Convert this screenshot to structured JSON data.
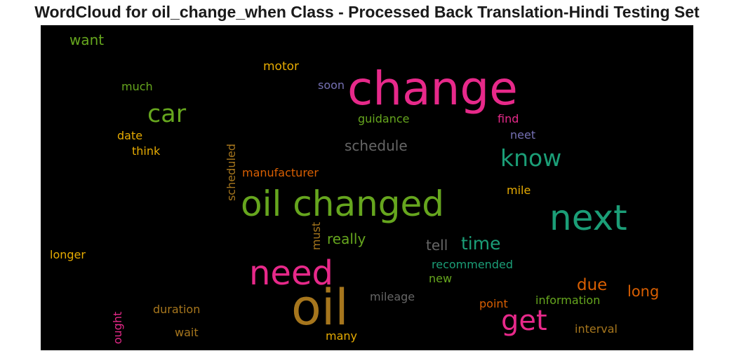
{
  "title": "WordCloud for oil_change_when Class - Processed Back Translation-Hindi Testing Set",
  "words": [
    {
      "text": "change",
      "color": "#e7298a"
    },
    {
      "text": "oil changed",
      "color": "#66a61e"
    },
    {
      "text": "next",
      "color": "#1b9e77"
    },
    {
      "text": "oil",
      "color": "#a6761d"
    },
    {
      "text": "need",
      "color": "#e7298a"
    },
    {
      "text": "get",
      "color": "#e7298a"
    },
    {
      "text": "car",
      "color": "#66a61e"
    },
    {
      "text": "know",
      "color": "#1b9e77"
    },
    {
      "text": "time",
      "color": "#1b9e77"
    },
    {
      "text": "schedule",
      "color": "#666666"
    },
    {
      "text": "due",
      "color": "#d95f02"
    },
    {
      "text": "long",
      "color": "#d95f02"
    },
    {
      "text": "tell",
      "color": "#666666"
    },
    {
      "text": "really",
      "color": "#66a61e"
    },
    {
      "text": "want",
      "color": "#66a61e"
    },
    {
      "text": "motor",
      "color": "#e6ab02"
    },
    {
      "text": "soon",
      "color": "#7570b3"
    },
    {
      "text": "much",
      "color": "#66a61e"
    },
    {
      "text": "guidance",
      "color": "#66a61e"
    },
    {
      "text": "find",
      "color": "#e7298a"
    },
    {
      "text": "neet",
      "color": "#7570b3"
    },
    {
      "text": "date",
      "color": "#e6ab02"
    },
    {
      "text": "think",
      "color": "#e6ab02"
    },
    {
      "text": "manufacturer",
      "color": "#d95f02"
    },
    {
      "text": "scheduled",
      "color": "#a6761d"
    },
    {
      "text": "mile",
      "color": "#e6ab02"
    },
    {
      "text": "must",
      "color": "#a6761d"
    },
    {
      "text": "longer",
      "color": "#e6ab02"
    },
    {
      "text": "recommended",
      "color": "#1b9e77"
    },
    {
      "text": "new",
      "color": "#66a61e"
    },
    {
      "text": "mileage",
      "color": "#666666"
    },
    {
      "text": "point",
      "color": "#d95f02"
    },
    {
      "text": "information",
      "color": "#66a61e"
    },
    {
      "text": "duration",
      "color": "#a6761d"
    },
    {
      "text": "wait",
      "color": "#a6761d"
    },
    {
      "text": "interval",
      "color": "#a6761d"
    },
    {
      "text": "ought",
      "color": "#e7298a"
    },
    {
      "text": "many",
      "color": "#e6ab02"
    }
  ]
}
